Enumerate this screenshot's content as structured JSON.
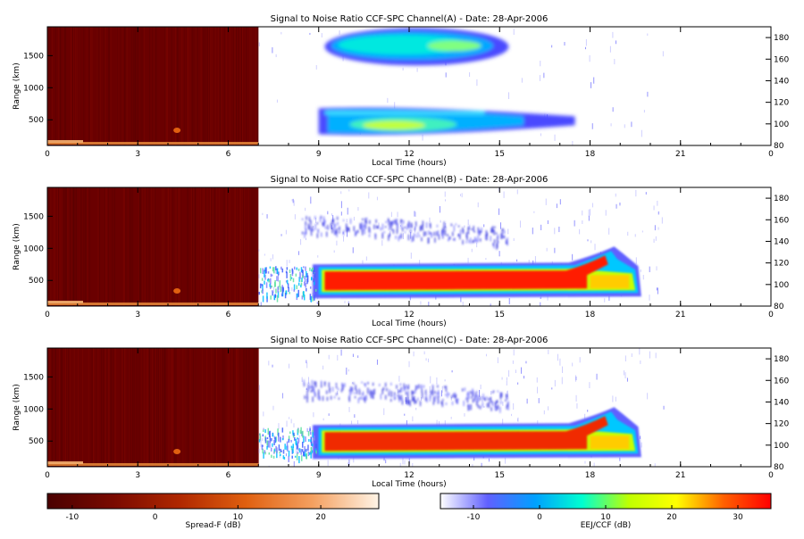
{
  "chart_data": [
    {
      "type": "heatmap",
      "title": "Signal to Noise Ratio CCF-SPC Channel(A) - Date: 28-Apr-2006",
      "xlabel": "Local Time (hours)",
      "ylabel": "Range (km)",
      "xlim": [
        0,
        24
      ],
      "ylim": [
        100,
        1950
      ],
      "y2lim": [
        80,
        190
      ],
      "xticks": [
        "0",
        "3",
        "6",
        "9",
        "12",
        "15",
        "18",
        "21",
        "0"
      ],
      "yticks": [
        "500",
        "1000",
        "1500"
      ],
      "y2ticks": [
        "80",
        "100",
        "120",
        "140",
        "160",
        "180"
      ],
      "spread_f": {
        "t_start": 0,
        "t_end": 7
      },
      "eej_echoes": [
        {
          "t_start": 9.2,
          "t_end": 15.3,
          "range_center_km": 1640,
          "peak_t": 13.5
        },
        {
          "t_start": 9.0,
          "t_end": 17.5,
          "range_center_km": 470,
          "peak_t": 12.0
        }
      ]
    },
    {
      "type": "heatmap",
      "title": "Signal to Noise Ratio CCF-SPC Channel(B) - Date: 28-Apr-2006",
      "xlabel": "Local Time (hours)",
      "ylabel": "Range (km)",
      "xlim": [
        0,
        24
      ],
      "ylim": [
        100,
        1950
      ],
      "y2lim": [
        80,
        190
      ],
      "xticks": [
        "0",
        "3",
        "6",
        "9",
        "12",
        "15",
        "18",
        "21",
        "0"
      ],
      "yticks": [
        "500",
        "1000",
        "1500"
      ],
      "y2ticks": [
        "80",
        "100",
        "120",
        "140",
        "160",
        "180"
      ],
      "spread_f": {
        "t_start": 0,
        "t_end": 7
      },
      "eej_echoes": [
        {
          "t_start": 8.4,
          "t_end": 15.3,
          "range_center_km": 1350,
          "peak_t": 12.0
        },
        {
          "t_start": 8.8,
          "t_end": 19.7,
          "range_center_km": 500,
          "peak_t": 12.5
        }
      ]
    },
    {
      "type": "heatmap",
      "title": "Signal to Noise Ratio CCF-SPC Channel(C) - Date: 28-Apr-2006",
      "xlabel": "Local Time (hours)",
      "ylabel": "Range (km)",
      "xlim": [
        0,
        24
      ],
      "ylim": [
        100,
        1950
      ],
      "y2lim": [
        80,
        190
      ],
      "xticks": [
        "0",
        "3",
        "6",
        "9",
        "12",
        "15",
        "18",
        "21",
        "0"
      ],
      "yticks": [
        "500",
        "1000",
        "1500"
      ],
      "y2ticks": [
        "80",
        "100",
        "120",
        "140",
        "160",
        "180"
      ],
      "spread_f": {
        "t_start": 0,
        "t_end": 7
      },
      "eej_echoes": [
        {
          "t_start": 8.4,
          "t_end": 15.3,
          "range_center_km": 1300,
          "peak_t": 12.0
        },
        {
          "t_start": 8.8,
          "t_end": 19.7,
          "range_center_km": 500,
          "peak_t": 12.5
        }
      ]
    }
  ],
  "colorbars": [
    {
      "label": "Spread-F (dB)",
      "range": [
        -13,
        27
      ],
      "ticks": [
        "-10",
        "0",
        "10",
        "20"
      ],
      "colors": [
        "#4a0000",
        "#7a0a00",
        "#b02800",
        "#e06010",
        "#f4a060",
        "#fff4e6"
      ]
    },
    {
      "label": "EEJ/CCF (dB)",
      "range": [
        -15,
        35
      ],
      "ticks": [
        "-10",
        "0",
        "10",
        "20",
        "30"
      ],
      "colors": [
        "#ffffff",
        "#6060ff",
        "#00a0ff",
        "#00ffd0",
        "#c0ff00",
        "#ffff00",
        "#ff6000",
        "#ff0000"
      ]
    }
  ]
}
